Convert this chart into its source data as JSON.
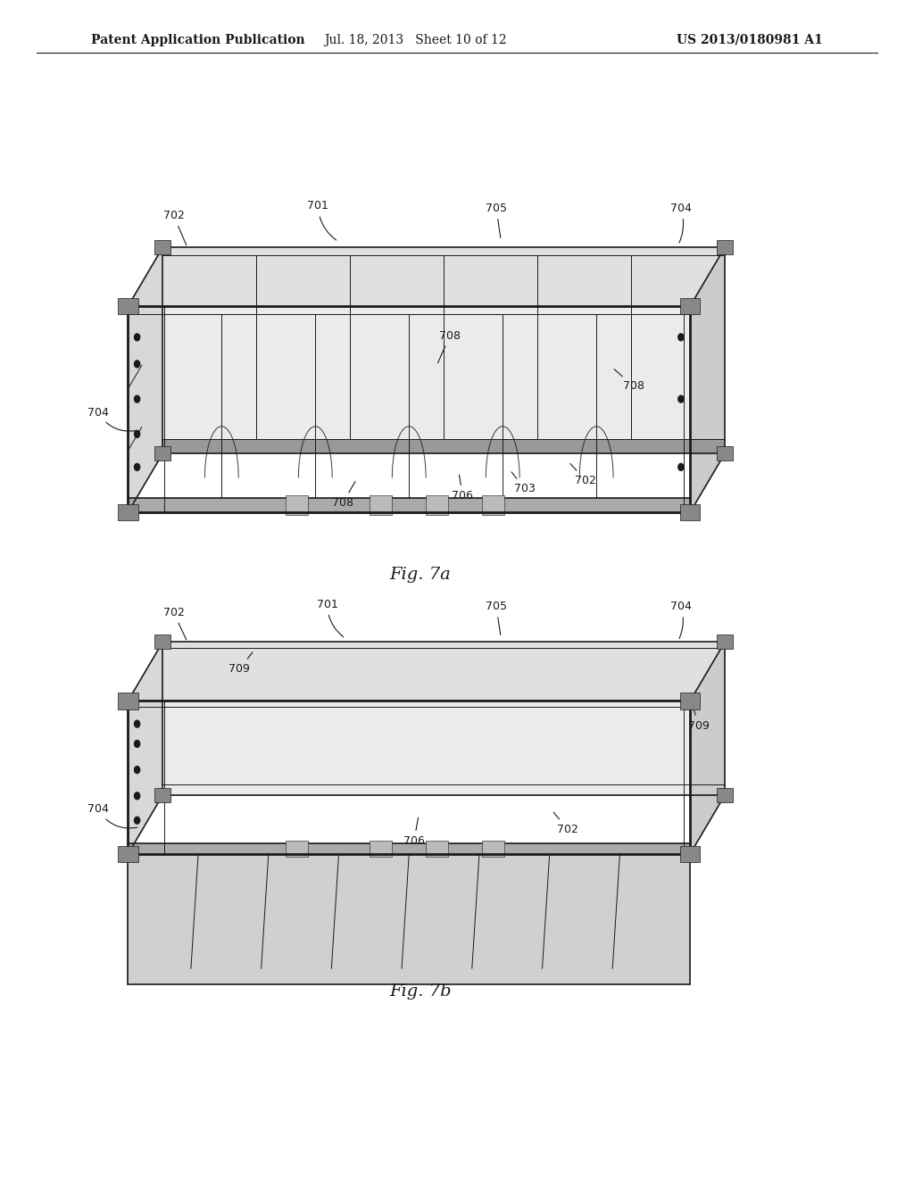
{
  "background_color": "#ffffff",
  "header_left": "Patent Application Publication",
  "header_center": "Jul. 18, 2013   Sheet 10 of 12",
  "header_right": "US 2013/0180981 A1",
  "fig7a_label": "Fig. 7a",
  "fig7b_label": "Fig. 7b",
  "font_color": "#1a1a1a",
  "line_color": "#1a1a1a",
  "header_fontsize": 10,
  "caption_fontsize": 14,
  "label_fontsize": 9
}
